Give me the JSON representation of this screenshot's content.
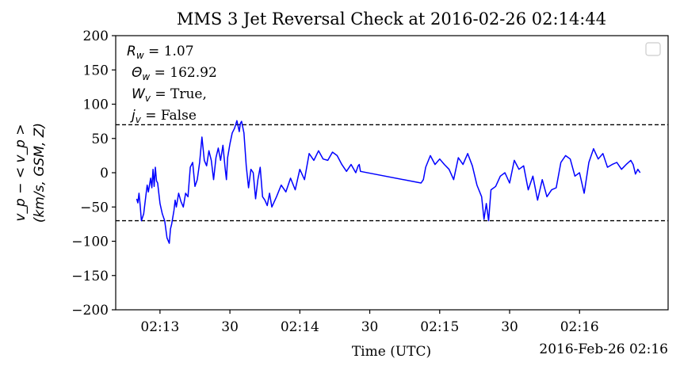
{
  "chart_data": {
    "type": "line",
    "title": "MMS 3 Jet Reversal Check at 2016-02-26 02:14:44",
    "xlabel": "Time (UTC)",
    "ylabel_line1": "v_p − < v_p >",
    "ylabel_line2": "(km/s, GSM, Z)",
    "offset_label": "2016-Feb-26 02:16",
    "xlim": [
      "02:12:41",
      "02:16:38"
    ],
    "ylim": [
      -200,
      200
    ],
    "x_ticks": [
      {
        "t": "02:13:00",
        "label": "02:13"
      },
      {
        "t": "02:13:30",
        "label": "30"
      },
      {
        "t": "02:14:00",
        "label": "02:14"
      },
      {
        "t": "02:14:30",
        "label": "30"
      },
      {
        "t": "02:15:00",
        "label": "02:15"
      },
      {
        "t": "02:15:30",
        "label": "30"
      },
      {
        "t": "02:16:00",
        "label": "02:16"
      }
    ],
    "y_ticks": [
      -200,
      -150,
      -100,
      -50,
      0,
      50,
      100,
      150,
      200
    ],
    "y_tick_labels": [
      "−200",
      "−150",
      "−100",
      "−50",
      "0",
      "50",
      "100",
      "150",
      "200"
    ],
    "thresholds": [
      70,
      -70
    ],
    "grid": false,
    "legend": "top-right",
    "annotations": [
      {
        "sym": "R",
        "sub": "w",
        "text": " = 1.07"
      },
      {
        "sym": "Θ",
        "sub": "w",
        "text": " = 162.92"
      },
      {
        "sym": "W",
        "sub": "v",
        "text": " = True,"
      },
      {
        "sym": "j",
        "sub": "v",
        "text": " = False"
      }
    ],
    "colors": {
      "line": "#0000ff",
      "threshold": "#000000"
    },
    "series": [
      {
        "x": [
          "02:12:50.0",
          "02:12:50.5",
          "02:12:51.0",
          "02:12:51.5",
          "02:12:52.0",
          "02:12:53.0",
          "02:12:54.0",
          "02:12:54.5",
          "02:12:55.0",
          "02:12:56.0",
          "02:12:56.5",
          "02:12:57.0",
          "02:12:57.5",
          "02:12:58.0",
          "02:12:58.5",
          "02:12:59.0",
          "02:13:00.0",
          "02:13:01.0",
          "02:13:02.0",
          "02:13:03.0",
          "02:13:04.0",
          "02:13:04.5",
          "02:13:05.0",
          "02:13:06.0",
          "02:13:06.5",
          "02:13:07.0",
          "02:13:08.0",
          "02:13:09.0",
          "02:13:10.0",
          "02:13:11.0",
          "02:13:12.0",
          "02:13:13.0",
          "02:13:14.0",
          "02:13:15.0",
          "02:13:16.0",
          "02:13:17.0",
          "02:13:18.0",
          "02:13:19.0",
          "02:13:20.0",
          "02:13:21.0",
          "02:13:22.0",
          "02:13:23.0",
          "02:13:24.0",
          "02:13:25.0",
          "02:13:26.0",
          "02:13:27.0",
          "02:13:28.0",
          "02:13:28.5",
          "02:13:29.0",
          "02:13:30.0",
          "02:13:31.0",
          "02:13:32.0",
          "02:13:33.0",
          "02:13:34.0",
          "02:13:34.5",
          "02:13:35.0",
          "02:13:36.0",
          "02:13:37.0",
          "02:13:38.0",
          "02:13:39.0",
          "02:13:40.0",
          "02:13:41.0",
          "02:13:42.0",
          "02:13:43.0",
          "02:13:44.0",
          "02:13:45.0",
          "02:13:46.0",
          "02:13:47.0",
          "02:13:48.0",
          "02:13:50.0",
          "02:13:52.0",
          "02:13:54.0",
          "02:13:56.0",
          "02:13:58.0",
          "02:14:00.0",
          "02:14:02.0",
          "02:14:04.0",
          "02:14:06.0",
          "02:14:08.0",
          "02:14:10.0",
          "02:14:12.0",
          "02:14:14.0",
          "02:14:16.0",
          "02:14:18.0",
          "02:14:20.0",
          "02:14:22.0",
          "02:14:24.0",
          "02:14:25.0",
          "02:14:25.5",
          "02:14:26.0",
          "02:14:52.0",
          "02:14:53.0",
          "02:14:54.0",
          "02:14:56.0",
          "02:14:58.0",
          "02:15:00.0",
          "02:15:02.0",
          "02:15:04.0",
          "02:15:06.0",
          "02:15:08.0",
          "02:15:10.0",
          "02:15:12.0",
          "02:15:14.0",
          "02:15:16.0",
          "02:15:18.0",
          "02:15:19.0",
          "02:15:20.0",
          "02:15:21.0",
          "02:15:22.0",
          "02:15:24.0",
          "02:15:26.0",
          "02:15:28.0",
          "02:15:30.0",
          "02:15:32.0",
          "02:15:34.0",
          "02:15:36.0",
          "02:15:38.0",
          "02:15:40.0",
          "02:15:42.0",
          "02:15:44.0",
          "02:15:46.0",
          "02:15:48.0",
          "02:15:50.0",
          "02:15:52.0",
          "02:15:54.0",
          "02:15:56.0",
          "02:15:58.0",
          "02:16:00.0",
          "02:16:02.0",
          "02:16:04.0",
          "02:16:06.0",
          "02:16:08.0",
          "02:16:10.0",
          "02:16:12.0",
          "02:16:14.0",
          "02:16:16.0",
          "02:16:18.0",
          "02:16:20.0",
          "02:16:22.0",
          "02:16:23.0",
          "02:16:24.0",
          "02:16:25.0",
          "02:16:26.0"
        ],
        "y": [
          -38,
          -44,
          -30,
          -48,
          -70,
          -60,
          -32,
          -18,
          -28,
          -8,
          -22,
          5,
          -20,
          8,
          -12,
          -15,
          -45,
          -60,
          -70,
          -95,
          -103,
          -82,
          -75,
          -55,
          -40,
          -50,
          -30,
          -42,
          -50,
          -30,
          -35,
          8,
          15,
          -20,
          -10,
          15,
          52,
          18,
          10,
          32,
          18,
          -10,
          22,
          36,
          18,
          40,
          5,
          -10,
          22,
          42,
          58,
          65,
          76,
          60,
          72,
          75,
          58,
          10,
          -22,
          5,
          0,
          -38,
          -10,
          8,
          -35,
          -40,
          -48,
          -30,
          -50,
          -35,
          -18,
          -28,
          -8,
          -25,
          5,
          -10,
          28,
          18,
          32,
          20,
          18,
          30,
          25,
          12,
          2,
          12,
          0,
          10,
          12,
          2,
          -15,
          -10,
          8,
          25,
          12,
          20,
          12,
          5,
          -10,
          22,
          12,
          28,
          10,
          -18,
          -35,
          -68,
          -45,
          -70,
          -25,
          -20,
          -5,
          0,
          -15,
          18,
          5,
          10,
          -25,
          -5,
          -40,
          -10,
          -35,
          -25,
          -22,
          15,
          25,
          20,
          -5,
          0,
          -30,
          15,
          35,
          20,
          28,
          8,
          12,
          15,
          5,
          12,
          18,
          12,
          -2,
          5,
          0
        ]
      }
    ]
  }
}
